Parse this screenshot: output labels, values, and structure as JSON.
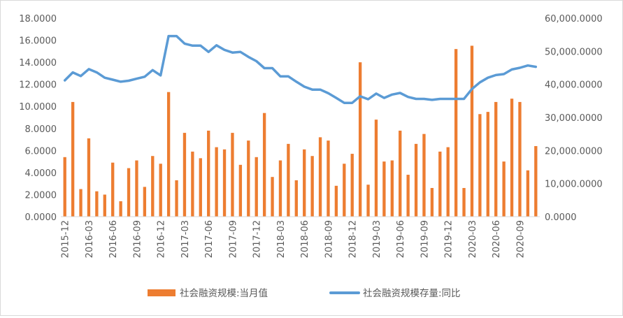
{
  "chart_data": {
    "type": "bar+line",
    "title": "",
    "categories": [
      "2015-12",
      "2016-01",
      "2016-02",
      "2016-03",
      "2016-04",
      "2016-05",
      "2016-06",
      "2016-07",
      "2016-08",
      "2016-09",
      "2016-10",
      "2016-11",
      "2016-12",
      "2017-01",
      "2017-02",
      "2017-03",
      "2017-04",
      "2017-05",
      "2017-06",
      "2017-07",
      "2017-08",
      "2017-09",
      "2017-10",
      "2017-11",
      "2017-12",
      "2018-01",
      "2018-02",
      "2018-03",
      "2018-04",
      "2018-05",
      "2018-06",
      "2018-07",
      "2018-08",
      "2018-09",
      "2018-10",
      "2018-11",
      "2018-12",
      "2019-01",
      "2019-02",
      "2019-03",
      "2019-04",
      "2019-05",
      "2019-06",
      "2019-07",
      "2019-08",
      "2019-09",
      "2019-10",
      "2019-11",
      "2019-12",
      "2020-01",
      "2020-02",
      "2020-03",
      "2020-04",
      "2020-05",
      "2020-06",
      "2020-07",
      "2020-08",
      "2020-09",
      "2020-10",
      "2020-11"
    ],
    "x_tick_labels": [
      "2015-12",
      "2016-03",
      "2016-06",
      "2016-09",
      "2016-12",
      "2017-03",
      "2017-06",
      "2017-09",
      "2017-12",
      "2018-03",
      "2018-06",
      "2018-09",
      "2018-12",
      "2019-03",
      "2019-06",
      "2019-09",
      "2019-12",
      "2020-03",
      "2020-06",
      "2020-09"
    ],
    "series": [
      {
        "name": "社会融资规模:当月值",
        "type": "bar",
        "axis": "left",
        "color": "#ED7D31",
        "values": [
          5.4,
          10.4,
          2.5,
          7.1,
          2.3,
          2.0,
          4.9,
          1.4,
          4.4,
          5.1,
          2.7,
          5.5,
          4.8,
          11.3,
          3.3,
          7.6,
          5.9,
          5.3,
          7.8,
          6.3,
          6.1,
          7.6,
          4.7,
          6.9,
          5.4,
          9.4,
          3.6,
          5.1,
          6.6,
          3.3,
          6.1,
          5.5,
          7.2,
          6.9,
          2.8,
          4.8,
          5.7,
          14.0,
          2.9,
          8.8,
          5.0,
          5.1,
          7.8,
          3.8,
          6.6,
          7.5,
          2.6,
          5.9,
          6.3,
          15.2,
          2.6,
          15.5,
          9.3,
          9.5,
          10.4,
          5.0,
          10.7,
          10.4,
          4.2,
          6.4
        ]
      },
      {
        "name": "社会融资规模存量:同比",
        "type": "line",
        "axis": "right",
        "color": "#5B9BD5",
        "values": [
          41200,
          43600,
          42500,
          44600,
          43600,
          42000,
          41400,
          40800,
          41100,
          41700,
          42300,
          44300,
          42700,
          54600,
          54600,
          52300,
          51700,
          51700,
          49800,
          51800,
          50400,
          49600,
          49800,
          48300,
          47000,
          44900,
          44900,
          42400,
          42400,
          40800,
          39300,
          38400,
          38400,
          37300,
          35900,
          34400,
          34400,
          36400,
          35500,
          37200,
          35900,
          36900,
          37400,
          36200,
          35600,
          35600,
          35300,
          35600,
          35600,
          35600,
          35600,
          38600,
          40600,
          42000,
          42800,
          43100,
          44500,
          45000,
          45700,
          45300
        ]
      }
    ],
    "y_left": {
      "ylim": [
        0,
        18
      ],
      "ticks": [
        "0.0000",
        "2.0000",
        "4.0000",
        "6.0000",
        "8.0000",
        "10.0000",
        "12.0000",
        "14.0000",
        "16.0000",
        "18.0000"
      ]
    },
    "y_right": {
      "ylim": [
        0,
        60000
      ],
      "ticks": [
        "0.0000",
        "10,000.0000",
        "20,000.0000",
        "30,000.0000",
        "40,000.0000",
        "50,000.0000",
        "60,000.0000"
      ]
    },
    "grid": false,
    "legend": {
      "position": "bottom",
      "labels": [
        "社会融资规模:当月值",
        "社会融资规模存量:同比"
      ]
    }
  }
}
